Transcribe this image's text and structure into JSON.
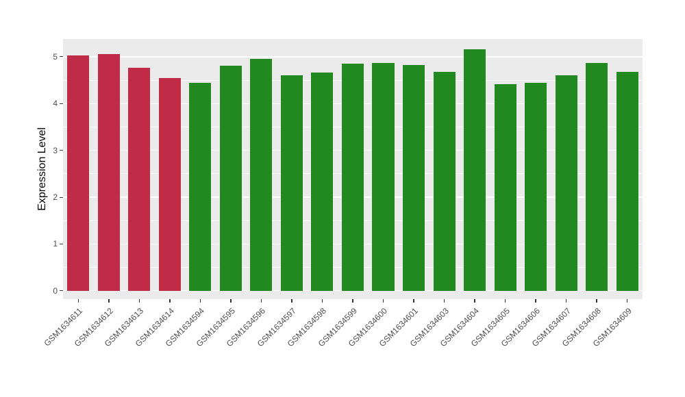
{
  "chart_data": {
    "type": "bar",
    "title": "",
    "xlabel": "",
    "ylabel": "Expression Level",
    "categories": [
      "GSM1634611",
      "GSM1634612",
      "GSM1634613",
      "GSM1634614",
      "GSM1634594",
      "GSM1634595",
      "GSM1634596",
      "GSM1634597",
      "GSM1634598",
      "GSM1634599",
      "GSM1634600",
      "GSM1634601",
      "GSM1634603",
      "GSM1634604",
      "GSM1634605",
      "GSM1634606",
      "GSM1634607",
      "GSM1634608",
      "GSM1634609"
    ],
    "values": [
      5.03,
      5.06,
      4.77,
      4.55,
      4.44,
      4.81,
      4.96,
      4.6,
      4.67,
      4.85,
      4.87,
      4.83,
      4.68,
      5.16,
      4.42,
      4.44,
      4.6,
      4.87,
      4.68
    ],
    "bar_colors": [
      "#C02B47",
      "#C02B47",
      "#C02B47",
      "#C02B47",
      "#21891F",
      "#21891F",
      "#21891F",
      "#21891F",
      "#21891F",
      "#21891F",
      "#21891F",
      "#21891F",
      "#21891F",
      "#21891F",
      "#21891F",
      "#21891F",
      "#21891F",
      "#21891F",
      "#21891F"
    ],
    "group_colors": {
      "highlight": "#C02B47",
      "default": "#21891F"
    },
    "yticks": [
      0,
      1,
      2,
      3,
      4,
      5
    ],
    "minor_ticks": [
      0.5,
      1.5,
      2.5,
      3.5,
      4.5
    ],
    "ylim": [
      0,
      5.16
    ],
    "display_range": [
      -0.18,
      5.38
    ],
    "panel_background": "#EBEBEB",
    "grid_color": "#FFFFFF",
    "tick_label_color": "#4D4D4D",
    "axis_title_color": "#000000",
    "legend_position": "none",
    "grid": "on",
    "bar_width_fraction": 0.72
  }
}
